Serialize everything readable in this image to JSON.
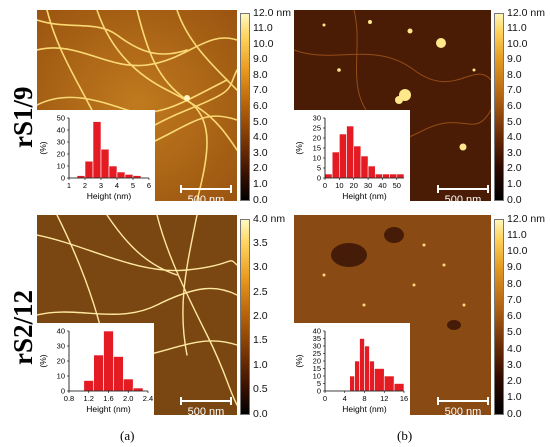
{
  "rows": [
    {
      "label": "rS1/9"
    },
    {
      "label": "rS2/12"
    }
  ],
  "panels": [
    {
      "scale_text": "500 nm",
      "colorbar_ticks": [
        "12.0 nm",
        "11.0",
        "10.0",
        "9.0",
        "8.0",
        "7.0",
        "6.0",
        "5.0",
        "4.0",
        "3.0",
        "2.0",
        "1.0",
        "0.0"
      ],
      "histogram": {
        "xlabel": "Height (nm)",
        "ylabel": "(%)",
        "x_ticks": [
          "1",
          "2",
          "3",
          "4",
          "5",
          "6"
        ],
        "y_ticks": [
          "0",
          "10",
          "20",
          "30",
          "40",
          "50"
        ],
        "bins": [
          [
            1.5,
            2,
            2
          ],
          [
            2,
            2.5,
            14
          ],
          [
            2.5,
            3,
            47
          ],
          [
            3,
            3.5,
            24
          ],
          [
            3.5,
            4,
            10
          ],
          [
            4,
            4.5,
            5
          ],
          [
            4.5,
            5,
            3
          ],
          [
            5,
            5.5,
            2
          ]
        ],
        "xlim": [
          1,
          6
        ],
        "ylim": [
          0,
          50
        ]
      }
    },
    {
      "scale_text": "500 nm",
      "colorbar_ticks": [
        "12.0 nm",
        "11.0",
        "10.0",
        "9.0",
        "8.0",
        "7.0",
        "6.0",
        "5.0",
        "4.0",
        "3.0",
        "2.0",
        "1.0",
        "0.0"
      ],
      "histogram": {
        "xlabel": "Height (nm)",
        "ylabel": "(%)",
        "x_ticks": [
          "0",
          "10",
          "20",
          "30",
          "40",
          "50"
        ],
        "y_ticks": [
          "0",
          "5",
          "10",
          "15",
          "20",
          "25",
          "30"
        ],
        "bins": [
          [
            0,
            5,
            2
          ],
          [
            5,
            10,
            13
          ],
          [
            10,
            15,
            22
          ],
          [
            15,
            20,
            26
          ],
          [
            20,
            25,
            16
          ],
          [
            25,
            30,
            11
          ],
          [
            30,
            35,
            6
          ],
          [
            35,
            40,
            2
          ],
          [
            40,
            45,
            2
          ],
          [
            45,
            50,
            2
          ],
          [
            50,
            55,
            2
          ]
        ],
        "xlim": [
          0,
          55
        ],
        "ylim": [
          0,
          30
        ]
      }
    },
    {
      "scale_text": "500 nm",
      "colorbar_ticks": [
        "4.0 nm",
        "3.5",
        "3.0",
        "2.5",
        "2.0",
        "1.5",
        "1.0",
        "0.5",
        "0.0"
      ],
      "histogram": {
        "xlabel": "Height (nm)",
        "ylabel": "(%)",
        "x_ticks": [
          "0.8",
          "1.2",
          "1.6",
          "2.0",
          "2.4"
        ],
        "y_ticks": [
          "0",
          "10",
          "20",
          "30",
          "40"
        ],
        "bins": [
          [
            1.1,
            1.3,
            7
          ],
          [
            1.3,
            1.5,
            24
          ],
          [
            1.5,
            1.7,
            40
          ],
          [
            1.7,
            1.9,
            23
          ],
          [
            1.9,
            2.1,
            8
          ],
          [
            2.1,
            2.3,
            2
          ]
        ],
        "xlim": [
          0.8,
          2.4
        ],
        "ylim": [
          0,
          40
        ]
      }
    },
    {
      "scale_text": "500 nm",
      "colorbar_ticks": [
        "12.0 nm",
        "11.0",
        "10.0",
        "9.0",
        "8.0",
        "7.0",
        "6.0",
        "5.0",
        "4.0",
        "3.0",
        "2.0",
        "1.0",
        "0.0"
      ],
      "histogram": {
        "xlabel": "Height (nm)",
        "ylabel": "(%)",
        "x_ticks": [
          "0",
          "4",
          "8",
          "12",
          "16"
        ],
        "y_ticks": [
          "0",
          "5",
          "10",
          "15",
          "20",
          "25",
          "30",
          "35",
          "40"
        ],
        "bins": [
          [
            5,
            6,
            10
          ],
          [
            6,
            7,
            20
          ],
          [
            7,
            8,
            35
          ],
          [
            8,
            9,
            30
          ],
          [
            9,
            10,
            20
          ],
          [
            10,
            12,
            15
          ],
          [
            12,
            14,
            10
          ],
          [
            14,
            16,
            5
          ]
        ],
        "xlim": [
          0,
          16
        ],
        "ylim": [
          0,
          40
        ]
      }
    }
  ],
  "captions": [
    "(a)",
    "(b)"
  ]
}
